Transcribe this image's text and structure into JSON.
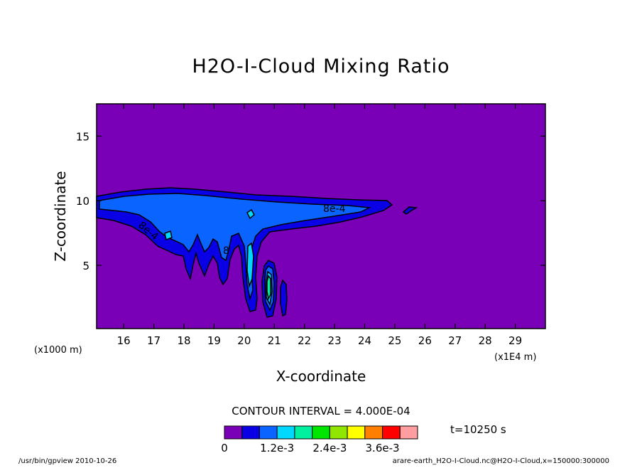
{
  "chart_data": {
    "type": "contour",
    "title": "H2O-I-Cloud Mixing Ratio",
    "xlabel": "X-coordinate",
    "ylabel": "Z-coordinate",
    "x_unit_left": "(x1000 m)",
    "x_unit_right": "(x1E4 m)",
    "x_ticks": [
      16,
      17,
      18,
      19,
      20,
      21,
      22,
      23,
      24,
      25,
      26,
      27,
      28,
      29
    ],
    "y_ticks": [
      5,
      10,
      15
    ],
    "xlim": [
      15.1,
      30.0
    ],
    "ylim": [
      0.1,
      17.5
    ],
    "contour_interval_text": "CONTOUR INTERVAL = 4.000E-04",
    "time_text": "t=10250 s",
    "contour_labels": [
      "8e-4",
      "8e-4",
      "8"
    ],
    "colorbar": {
      "colors": [
        "#7a00b8",
        "#0a00e6",
        "#0a64ff",
        "#00d8ff",
        "#00f0a0",
        "#00e600",
        "#90e600",
        "#ffff00",
        "#ff8000",
        "#ff0000",
        "#ff9ea0"
      ],
      "labels": [
        "0",
        "1.2e-3",
        "2.4e-3",
        "3.6e-3"
      ]
    },
    "background_color": "#7a00b8"
  },
  "footer": {
    "left": "/usr/bin/gpview   2010-10-26",
    "right": "arare-earth_H2O-I-Cloud.nc@H2O-I-Cloud,x=150000:300000"
  }
}
